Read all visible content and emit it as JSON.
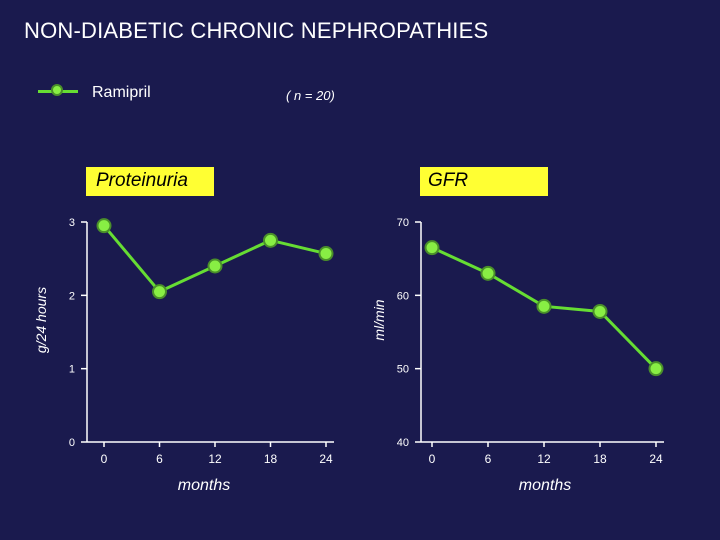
{
  "title": "NON-DIABETIC CHRONIC NEPHROPATHIES",
  "legend": {
    "label": "Ramipril",
    "n_label": "( n = 20)"
  },
  "colors": {
    "background": "#1a1a4e",
    "line": "#66dd33",
    "marker_fill": "#88ee44",
    "marker_edge": "#4a8f2a",
    "axis": "#ffffff",
    "label_bg": "#ffff33"
  },
  "chart_data": [
    {
      "type": "line",
      "panel_label": "Proteinuria",
      "xlabel": "months",
      "ylabel": "g/24 hours",
      "x": [
        0,
        6,
        12,
        18,
        24
      ],
      "x_ticks": [
        "0",
        "6",
        "12",
        "18",
        "24"
      ],
      "y_ticks": [
        "0",
        "1",
        "2",
        "3"
      ],
      "ylim": [
        0,
        3
      ],
      "series": [
        {
          "name": "Ramipril",
          "values": [
            2.95,
            2.05,
            2.4,
            2.75,
            2.57
          ]
        }
      ]
    },
    {
      "type": "line",
      "panel_label": "GFR",
      "xlabel": "months",
      "ylabel": "ml/min",
      "x": [
        0,
        6,
        12,
        18,
        24
      ],
      "x_ticks": [
        "0",
        "6",
        "12",
        "18",
        "24"
      ],
      "y_ticks": [
        "40",
        "50",
        "60",
        "70"
      ],
      "ylim": [
        40,
        70
      ],
      "series": [
        {
          "name": "Ramipril",
          "values": [
            66.5,
            63.0,
            58.5,
            57.8,
            50.0
          ]
        }
      ]
    }
  ]
}
